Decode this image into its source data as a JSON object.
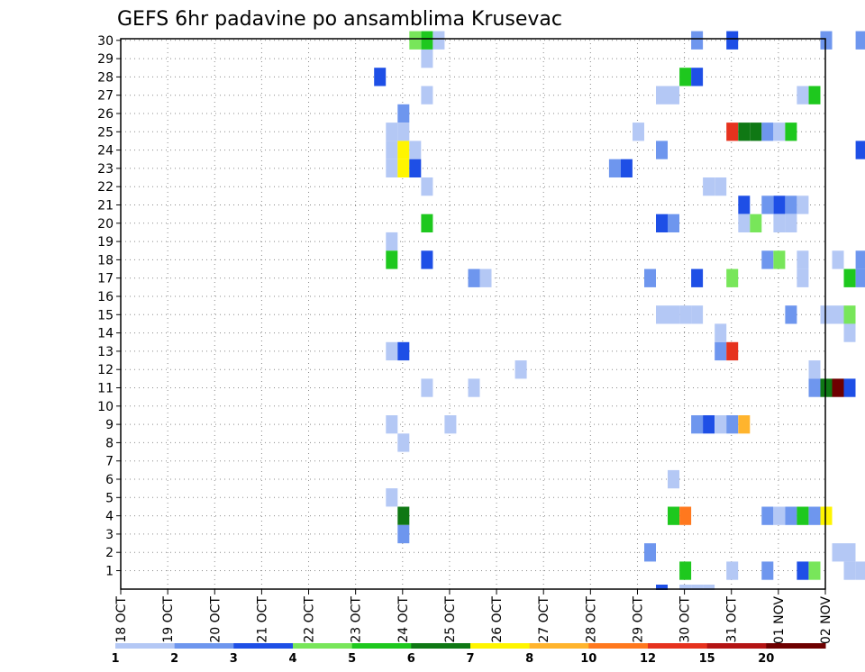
{
  "chart_data": {
    "type": "heatmap",
    "title": "GEFS 6hr padavine po ansamblima Krusevac",
    "xlabel": "",
    "ylabel": "",
    "x_ticks": [
      "18 OCT",
      "19 OCT",
      "20 OCT",
      "21 OCT",
      "22 OCT",
      "23 OCT",
      "24 OCT",
      "25 OCT",
      "26 OCT",
      "27 OCT",
      "28 OCT",
      "29 OCT",
      "30 OCT",
      "31 OCT",
      "01 NOV",
      "02 NOV"
    ],
    "y_ticks": [
      "1",
      "2",
      "3",
      "4",
      "5",
      "6",
      "7",
      "8",
      "9",
      "10",
      "11",
      "12",
      "13",
      "14",
      "15",
      "16",
      "17",
      "18",
      "19",
      "20",
      "21",
      "22",
      "23",
      "24",
      "25",
      "26",
      "27",
      "28",
      "29",
      "30"
    ],
    "x_range": [
      "18 OCT 00Z",
      "02 NOV 00Z"
    ],
    "y_range": [
      0,
      30
    ],
    "grid": true,
    "color_levels": [
      "1",
      "2",
      "3",
      "4",
      "5",
      "6",
      "7",
      "8",
      "10",
      "12",
      "15",
      "20"
    ],
    "color_scale": [
      "#b4c8f5",
      "#6e96ee",
      "#1e4fe6",
      "#78e65a",
      "#1ec81e",
      "#0f7814",
      "#fff500",
      "#ffb42d",
      "#ff781e",
      "#e6321e",
      "#b41414",
      "#6e0000"
    ],
    "cell_units": "x = time step in 6-hour steps from 18 OCT 00Z, y = ensemble member, level = colour class index (0 = lightest)",
    "cells": [
      [
        45,
        1,
        1
      ],
      [
        58,
        1,
        0
      ],
      [
        58,
        2,
        0
      ],
      [
        58,
        3,
        0
      ],
      [
        58,
        4,
        0
      ],
      [
        58,
        5,
        0
      ],
      [
        72,
        1,
        2
      ],
      [
        73,
        1,
        3
      ],
      [
        74,
        1,
        1
      ],
      [
        75,
        1,
        0
      ],
      [
        76,
        1,
        0
      ],
      [
        77,
        1,
        2
      ],
      [
        78,
        1,
        0
      ],
      [
        74,
        2,
        0
      ],
      [
        74,
        3,
        0
      ],
      [
        75,
        2,
        4
      ],
      [
        75,
        3,
        3
      ],
      [
        48,
        3,
        0
      ],
      [
        48,
        4,
        0
      ],
      [
        48,
        5,
        0
      ],
      [
        48,
        6,
        0
      ],
      [
        47,
        4,
        1
      ],
      [
        47,
        5,
        1
      ],
      [
        47,
        6,
        1
      ],
      [
        47,
        7,
        1
      ],
      [
        45,
        3,
        0
      ],
      [
        45,
        4,
        0
      ],
      [
        45,
        5,
        0
      ],
      [
        45,
        6,
        0
      ],
      [
        48,
        8,
        5
      ],
      [
        49,
        8,
        3
      ],
      [
        49,
        9,
        3
      ],
      [
        64,
        1,
        4
      ],
      [
        66,
        1,
        2
      ],
      [
        67,
        1,
        1
      ],
      [
        68,
        1,
        0
      ],
      [
        69,
        1,
        2
      ],
      [
        70,
        1,
        1
      ],
      [
        71,
        1,
        1
      ],
      [
        72,
        2,
        2
      ],
      [
        72,
        3,
        1
      ],
      [
        72,
        4,
        0
      ],
      [
        72,
        5,
        0
      ],
      [
        72,
        6,
        0
      ],
      [
        72,
        7,
        0
      ],
      [
        70,
        2,
        2
      ],
      [
        70,
        3,
        3
      ],
      [
        70,
        4,
        0
      ],
      [
        70,
        5,
        1
      ],
      [
        70,
        6,
        2
      ],
      [
        70,
        7,
        0
      ],
      [
        71,
        3,
        1
      ],
      [
        71,
        4,
        1
      ],
      [
        71,
        5,
        1
      ],
      [
        71,
        7,
        0
      ],
      [
        71,
        6,
        1
      ],
      [
        71,
        8,
        0
      ],
      [
        73,
        4,
        0
      ],
      [
        73,
        5,
        0
      ],
      [
        73,
        6,
        0
      ],
      [
        73,
        7,
        0
      ],
      [
        73,
        8,
        0
      ],
      [
        96,
        3,
        6
      ],
      [
        97,
        3,
        5
      ],
      [
        98,
        3,
        1
      ],
      [
        98,
        4,
        3
      ],
      [
        99,
        3,
        3
      ],
      [
        99,
        4,
        2
      ],
      [
        100,
        3,
        3
      ],
      [
        101,
        3,
        1
      ],
      [
        101,
        4,
        2
      ],
      [
        102,
        4,
        2
      ],
      [
        102,
        5,
        2
      ],
      [
        103,
        4,
        1
      ],
      [
        103,
        5,
        2
      ],
      [
        104,
        5,
        0
      ]
    ]
  },
  "cells_note": "",
  "legend": {
    "labels": [
      "1",
      "2",
      "3",
      "4",
      "5",
      "6",
      "7",
      "8",
      "10",
      "12",
      "15",
      "20"
    ]
  }
}
